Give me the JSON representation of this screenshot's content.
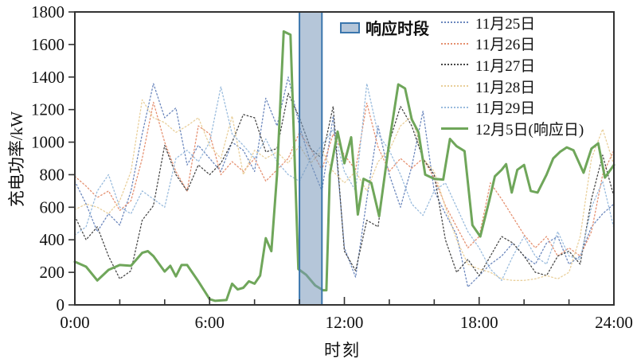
{
  "chart_data": {
    "type": "line",
    "title": "",
    "xlabel": "时刻",
    "ylabel": "充电功率/kW",
    "xlim": [
      0,
      24
    ],
    "ylim": [
      0,
      1800
    ],
    "grid": false,
    "legend_position": "top-right",
    "x_ticks": {
      "minor_step_hours": 2,
      "major": [
        {
          "v": 0,
          "label": "0:00"
        },
        {
          "v": 6,
          "label": "6:00"
        },
        {
          "v": 12,
          "label": "12:00"
        },
        {
          "v": 18,
          "label": "18:00"
        },
        {
          "v": 24,
          "label": "24:00"
        }
      ]
    },
    "y_ticks": [
      0,
      200,
      400,
      600,
      800,
      1000,
      1200,
      1400,
      1600,
      1800
    ],
    "band": {
      "label": "响应时段",
      "from_hour": 10,
      "to_hour": 11,
      "fill": "#7898ba",
      "opacity": 0.55,
      "border": "#3b76ad"
    },
    "series": [
      {
        "name": "11月25日",
        "color": "#6b87bd",
        "style": "dotted",
        "width": 1.3,
        "x_start": 0,
        "x_step": 0.5,
        "values": [
          760,
          620,
          450,
          560,
          490,
          700,
          1050,
          1360,
          1150,
          1210,
          860,
          980,
          900,
          820,
          1000,
          950,
          820,
          1270,
          1100,
          1400,
          1100,
          870,
          700,
          1160,
          350,
          170,
          650,
          1100,
          800,
          600,
          850,
          1190,
          700,
          560,
          430,
          110,
          180,
          250,
          300,
          380,
          300,
          250,
          380,
          420,
          250,
          300,
          480,
          560,
          620
        ]
      },
      {
        "name": "11月26日",
        "color": "#e59070",
        "style": "dotted",
        "width": 1.3,
        "x_start": 0,
        "x_step": 0.5,
        "values": [
          790,
          730,
          660,
          700,
          580,
          640,
          900,
          1245,
          1000,
          820,
          700,
          1100,
          1050,
          800,
          880,
          820,
          900,
          760,
          830,
          900,
          1060,
          960,
          830,
          1050,
          920,
          830,
          1240,
          970,
          820,
          900,
          840,
          900,
          780,
          610,
          480,
          350,
          420,
          750,
          650,
          540,
          430,
          350,
          420,
          300,
          350,
          300,
          450,
          800,
          950
        ]
      },
      {
        "name": "11月27日",
        "color": "#474747",
        "style": "dotted",
        "width": 1.3,
        "x_start": 0,
        "x_step": 0.5,
        "values": [
          545,
          400,
          480,
          300,
          160,
          210,
          520,
          610,
          980,
          800,
          700,
          860,
          800,
          870,
          1000,
          1170,
          1150,
          940,
          960,
          1300,
          1150,
          960,
          900,
          1220,
          330,
          210,
          520,
          480,
          1000,
          1220,
          1100,
          900,
          800,
          400,
          200,
          280,
          180,
          300,
          420,
          380,
          300,
          200,
          180,
          300,
          330,
          250,
          650,
          920,
          665
        ]
      },
      {
        "name": "11月28日",
        "color": "#e9cf9a",
        "style": "dotted",
        "width": 1.3,
        "x_start": 0,
        "x_step": 0.5,
        "values": [
          585,
          620,
          600,
          560,
          640,
          820,
          1260,
          1150,
          1120,
          1060,
          1100,
          1150,
          980,
          900,
          1160,
          800,
          950,
          900,
          940,
          870,
          980,
          870,
          950,
          820,
          750,
          820,
          700,
          880,
          950,
          1100,
          1160,
          900,
          820,
          600,
          400,
          250,
          220,
          200,
          160,
          150,
          150,
          160,
          180,
          160,
          200,
          420,
          900,
          1080,
          860
        ]
      },
      {
        "name": "11月29日",
        "color": "#99bbdd",
        "style": "dotted",
        "width": 1.3,
        "x_start": 0,
        "x_step": 0.5,
        "values": [
          430,
          480,
          700,
          800,
          600,
          560,
          700,
          650,
          600,
          900,
          950,
          880,
          1000,
          1340,
          1050,
          980,
          900,
          1020,
          880,
          800,
          760,
          900,
          980,
          1080,
          820,
          700,
          1360,
          1050,
          950,
          800,
          620,
          550,
          700,
          750,
          600,
          450,
          350,
          220,
          150,
          300,
          420,
          300,
          250,
          450,
          300,
          280,
          600,
          760,
          470
        ]
      },
      {
        "name": "12月5日(响应日)",
        "color": "#6fa65a",
        "style": "solid",
        "width": 3,
        "x": [
          0,
          0.5,
          1,
          1.5,
          2,
          2.5,
          3,
          3.25,
          3.5,
          4,
          4.25,
          4.5,
          4.75,
          5,
          5.5,
          6,
          6.25,
          6.75,
          7,
          7.25,
          7.5,
          7.75,
          8,
          8.25,
          8.5,
          8.75,
          9,
          9.3,
          9.6,
          9.95,
          10.3,
          10.7,
          11.05,
          11.2,
          11.35,
          11.7,
          12,
          12.3,
          12.6,
          12.85,
          13.2,
          13.55,
          14,
          14.4,
          14.7,
          15,
          15.3,
          15.6,
          16,
          16.4,
          16.7,
          17,
          17.35,
          17.7,
          18.05,
          18.45,
          18.7,
          19,
          19.2,
          19.45,
          19.7,
          20,
          20.3,
          20.6,
          21,
          21.3,
          21.6,
          21.9,
          22.2,
          22.65,
          23,
          23.3,
          23.6,
          24
        ],
        "values": [
          265,
          235,
          150,
          215,
          245,
          240,
          320,
          330,
          300,
          205,
          240,
          175,
          245,
          245,
          145,
          35,
          25,
          30,
          130,
          95,
          105,
          145,
          130,
          180,
          410,
          330,
          800,
          1680,
          1660,
          220,
          185,
          120,
          90,
          90,
          800,
          1065,
          870,
          1030,
          555,
          775,
          750,
          545,
          1000,
          1355,
          1330,
          1140,
          1060,
          800,
          775,
          770,
          1020,
          975,
          945,
          490,
          420,
          640,
          790,
          830,
          865,
          690,
          830,
          860,
          700,
          690,
          800,
          900,
          940,
          968,
          950,
          812,
          960,
          993,
          782,
          860
        ]
      }
    ]
  }
}
